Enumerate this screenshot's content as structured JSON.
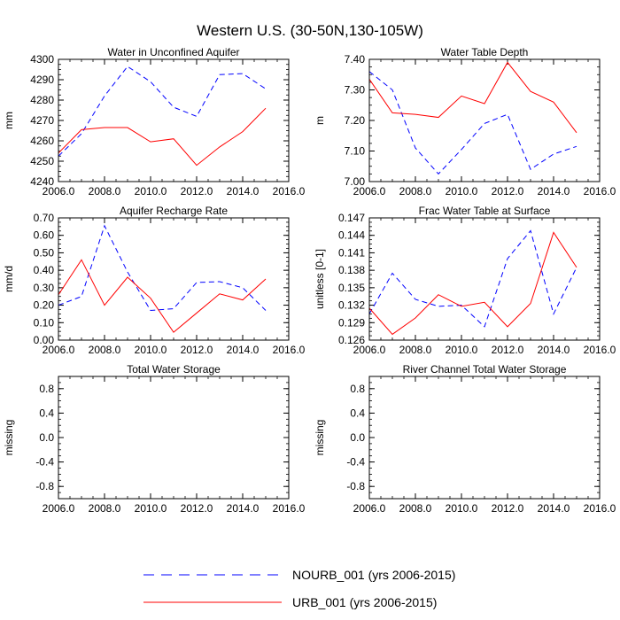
{
  "title": "Western U.S. (30-50N,130-105W)",
  "series_meta": [
    {
      "name": "NOURB_001 (yrs 2006-2015)",
      "color": "#0000ff",
      "dash": "dashed"
    },
    {
      "name": "URB_001 (yrs 2006-2015)",
      "color": "#ff0000",
      "dash": "solid"
    }
  ],
  "legend": {
    "nourb_label": "NOURB_001 (yrs 2006-2015)",
    "urb_label": "URB_001 (yrs 2006-2015)"
  },
  "chart_data": [
    {
      "type": "line",
      "title": "Water in Unconfined Aquifer",
      "xlabel": "",
      "ylabel": "mm",
      "xlim": [
        2006,
        2016
      ],
      "ylim": [
        4240,
        4300
      ],
      "xticks": [
        "2006.0",
        "2008.0",
        "2010.0",
        "2012.0",
        "2014.0",
        "2016.0"
      ],
      "yticks": [
        "4240",
        "4250",
        "4260",
        "4270",
        "4280",
        "4290",
        "4300"
      ],
      "x": [
        2006,
        2007,
        2008,
        2009,
        2010,
        2011,
        2012,
        2013,
        2014,
        2015
      ],
      "series": [
        {
          "name": "NOURB_001 (yrs 2006-2015)",
          "values": [
            4252.5,
            4263.5,
            4282.0,
            4296.5,
            4289.0,
            4276.5,
            4272.0,
            4292.5,
            4293.0,
            4285.5
          ]
        },
        {
          "name": "URB_001 (yrs 2006-2015)",
          "values": [
            4254.0,
            4265.5,
            4266.5,
            4266.5,
            4259.5,
            4261.0,
            4248.0,
            4257.0,
            4264.5,
            4276.0
          ]
        }
      ]
    },
    {
      "type": "line",
      "title": "Water Table Depth",
      "xlabel": "",
      "ylabel": "m",
      "xlim": [
        2006,
        2016
      ],
      "ylim": [
        7.0,
        7.4
      ],
      "xticks": [
        "2006.0",
        "2008.0",
        "2010.0",
        "2012.0",
        "2014.0",
        "2016.0"
      ],
      "yticks": [
        "7.00",
        "7.10",
        "7.20",
        "7.30",
        "7.40"
      ],
      "x": [
        2006,
        2007,
        2008,
        2009,
        2010,
        2011,
        2012,
        2013,
        2014,
        2015
      ],
      "series": [
        {
          "name": "NOURB_001 (yrs 2006-2015)",
          "values": [
            7.36,
            7.3,
            7.11,
            7.025,
            7.105,
            7.19,
            7.22,
            7.04,
            7.09,
            7.115
          ]
        },
        {
          "name": "URB_001 (yrs 2006-2015)",
          "values": [
            7.335,
            7.225,
            7.22,
            7.21,
            7.28,
            7.255,
            7.39,
            7.295,
            7.26,
            7.16
          ]
        }
      ]
    },
    {
      "type": "line",
      "title": "Aquifer Recharge Rate",
      "xlabel": "",
      "ylabel": "mm/d",
      "xlim": [
        2006,
        2016
      ],
      "ylim": [
        0.0,
        0.7
      ],
      "xticks": [
        "2006.0",
        "2008.0",
        "2010.0",
        "2012.0",
        "2014.0",
        "2016.0"
      ],
      "yticks": [
        "0.00",
        "0.10",
        "0.20",
        "0.30",
        "0.40",
        "0.50",
        "0.60",
        "0.70"
      ],
      "x": [
        2006,
        2007,
        2008,
        2009,
        2010,
        2011,
        2012,
        2013,
        2014,
        2015
      ],
      "series": [
        {
          "name": "NOURB_001 (yrs 2006-2015)",
          "values": [
            0.2,
            0.25,
            0.655,
            0.39,
            0.17,
            0.18,
            0.33,
            0.335,
            0.3,
            0.17
          ]
        },
        {
          "name": "URB_001 (yrs 2006-2015)",
          "values": [
            0.26,
            0.46,
            0.2,
            0.36,
            0.24,
            0.045,
            0.155,
            0.265,
            0.23,
            0.35
          ]
        }
      ]
    },
    {
      "type": "line",
      "title": "Frac Water Table at Surface",
      "xlabel": "",
      "ylabel": "unitless [0-1]",
      "xlim": [
        2006,
        2016
      ],
      "ylim": [
        0.126,
        0.147
      ],
      "xticks": [
        "2006.0",
        "2008.0",
        "2010.0",
        "2012.0",
        "2014.0",
        "2016.0"
      ],
      "yticks": [
        "0.126",
        "0.129",
        "0.132",
        "0.135",
        "0.138",
        "0.141",
        "0.144",
        "0.147"
      ],
      "x": [
        2006,
        2007,
        2008,
        2009,
        2010,
        2011,
        2012,
        2013,
        2014,
        2015
      ],
      "series": [
        {
          "name": "NOURB_001 (yrs 2006-2015)",
          "values": [
            0.1305,
            0.1375,
            0.133,
            0.1318,
            0.132,
            0.1283,
            0.14,
            0.1448,
            0.1305,
            0.1385
          ]
        },
        {
          "name": "URB_001 (yrs 2006-2015)",
          "values": [
            0.1315,
            0.127,
            0.1298,
            0.1338,
            0.1318,
            0.1325,
            0.1283,
            0.1323,
            0.1445,
            0.1385
          ]
        }
      ]
    },
    {
      "type": "line",
      "title": "Total Water Storage",
      "xlabel": "",
      "ylabel": "missing",
      "xlim": [
        2006,
        2016
      ],
      "ylim": [
        -1.0,
        1.0
      ],
      "xticks": [
        "2006.0",
        "2008.0",
        "2010.0",
        "2012.0",
        "2014.0",
        "2016.0"
      ],
      "yticks": [
        "-0.8",
        "-0.4",
        "0.0",
        "0.4",
        "0.8"
      ],
      "x": [],
      "series": []
    },
    {
      "type": "line",
      "title": "River Channel Total Water Storage",
      "xlabel": "",
      "ylabel": "missing",
      "xlim": [
        2006,
        2016
      ],
      "ylim": [
        -1.0,
        1.0
      ],
      "xticks": [
        "2006.0",
        "2008.0",
        "2010.0",
        "2012.0",
        "2014.0",
        "2016.0"
      ],
      "yticks": [
        "-0.8",
        "-0.4",
        "0.0",
        "0.4",
        "0.8"
      ],
      "x": [],
      "series": []
    }
  ]
}
